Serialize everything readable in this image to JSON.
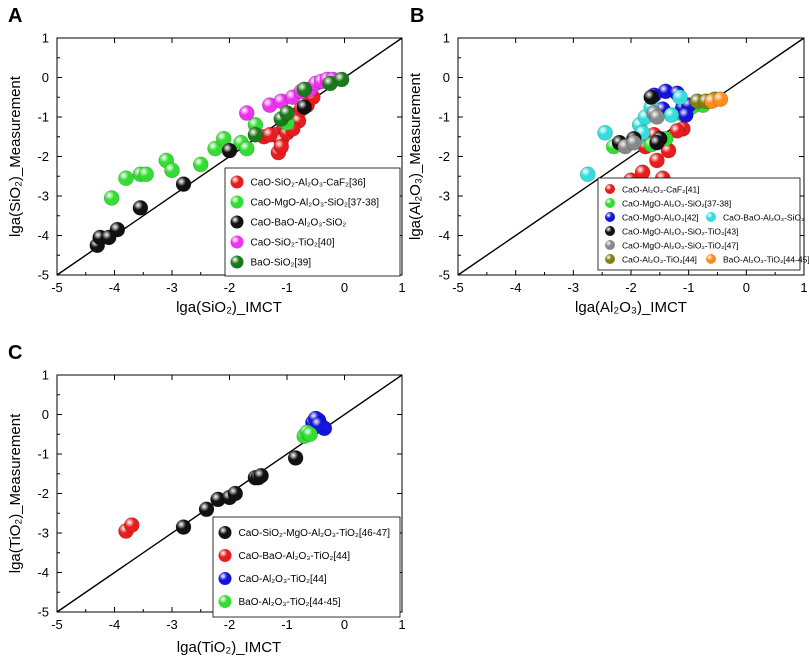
{
  "panels": [
    {
      "id": "A",
      "letter": "A",
      "chart_data": {
        "type": "scatter",
        "title": "",
        "xlabel": "lga(SiO₂)_IMCT",
        "ylabel": "lga(SiO₂)_Measurement",
        "xlim": [
          -5,
          1
        ],
        "ylim": [
          -5,
          1
        ],
        "xticks": [
          -5,
          -4,
          -3,
          -2,
          -1,
          0,
          1
        ],
        "yticks": [
          -5,
          -4,
          -3,
          -2,
          -1,
          0
        ],
        "reference_line": "y = x",
        "legend_position": "lower-right",
        "series": [
          {
            "name": "CaO-SiO₂-Al₂O₃-CaF₂[36]",
            "color": "#e81c1c",
            "points": [
              [
                -1.4,
                -1.5
              ],
              [
                -1.2,
                -1.45
              ],
              [
                -1.05,
                -1.25
              ],
              [
                -0.95,
                -1.05
              ],
              [
                -0.85,
                -0.95
              ],
              [
                -0.8,
                -1.1
              ],
              [
                -1.1,
                -1.6
              ],
              [
                -1.0,
                -1.4
              ],
              [
                -0.9,
                -1.3
              ],
              [
                -1.15,
                -1.9
              ],
              [
                -1.1,
                -1.75
              ],
              [
                -0.75,
                -0.8
              ],
              [
                -0.65,
                -0.7
              ],
              [
                -0.55,
                -0.5
              ],
              [
                -1.3,
                -1.45
              ]
            ]
          },
          {
            "name": "CaO-MgO-Al₂O₃-SiO₂[37-38]",
            "color": "#33dd33",
            "points": [
              [
                -4.05,
                -3.05
              ],
              [
                -3.8,
                -2.55
              ],
              [
                -3.55,
                -2.45
              ],
              [
                -3.45,
                -2.45
              ],
              [
                -3.1,
                -2.1
              ],
              [
                -3.0,
                -2.35
              ],
              [
                -2.5,
                -2.2
              ],
              [
                -2.25,
                -1.8
              ],
              [
                -2.1,
                -1.55
              ],
              [
                -1.8,
                -1.65
              ],
              [
                -1.7,
                -1.8
              ],
              [
                -1.55,
                -1.2
              ],
              [
                -1.0,
                -1.15
              ]
            ]
          },
          {
            "name": "CaO-BaO-Al₂O₃-SiO₂",
            "color": "#111111",
            "points": [
              [
                -4.3,
                -4.25
              ],
              [
                -4.25,
                -4.05
              ],
              [
                -4.1,
                -4.05
              ],
              [
                -3.95,
                -3.85
              ],
              [
                -3.55,
                -3.3
              ],
              [
                -2.8,
                -2.7
              ],
              [
                -2.0,
                -1.85
              ],
              [
                -0.7,
                -0.75
              ]
            ]
          },
          {
            "name": "CaO-SiO₂-TiO₂[40]",
            "color": "#ee33ee",
            "points": [
              [
                -1.7,
                -0.9
              ],
              [
                -1.3,
                -0.7
              ],
              [
                -1.1,
                -0.6
              ],
              [
                -0.9,
                -0.5
              ],
              [
                -0.75,
                -0.35
              ],
              [
                -0.6,
                -0.3
              ],
              [
                -0.5,
                -0.15
              ],
              [
                -0.4,
                -0.1
              ],
              [
                -0.3,
                -0.05
              ],
              [
                -0.2,
                -0.05
              ]
            ]
          },
          {
            "name": "BaO-SiO₂[39]",
            "color": "#1a7a1a",
            "points": [
              [
                -1.55,
                -1.45
              ],
              [
                -1.1,
                -1.05
              ],
              [
                -1.0,
                -0.9
              ],
              [
                -0.7,
                -0.3
              ],
              [
                -0.25,
                -0.15
              ],
              [
                -0.05,
                -0.05
              ]
            ]
          }
        ]
      }
    },
    {
      "id": "B",
      "letter": "B",
      "chart_data": {
        "type": "scatter",
        "title": "",
        "xlabel": "lga(Al₂O₃)_IMCT",
        "ylabel": "lga(Al₂O₃)_Measurement",
        "xlim": [
          -5,
          1
        ],
        "ylim": [
          -5,
          1
        ],
        "xticks": [
          -5,
          -4,
          -3,
          -2,
          -1,
          0,
          1
        ],
        "yticks": [
          -5,
          -4,
          -3,
          -2,
          -1,
          0
        ],
        "reference_line": "y = x",
        "legend_position": "lower-right",
        "series": [
          {
            "name": "CaO-Al₂O₃-CaF₂[41]",
            "color": "#e81c1c",
            "points": [
              [
                -2.0,
                -2.6
              ],
              [
                -1.8,
                -2.4
              ],
              [
                -1.45,
                -2.55
              ],
              [
                -1.55,
                -2.1
              ],
              [
                -1.35,
                -1.85
              ],
              [
                -1.1,
                -1.3
              ],
              [
                -1.2,
                -1.35
              ],
              [
                -1.75,
                -1.75
              ],
              [
                -1.6,
                -1.45
              ]
            ]
          },
          {
            "name": "CaO-MgO-Al₂O₃-SiO₂[37-38]",
            "color": "#33dd33",
            "points": [
              [
                -2.3,
                -1.75
              ],
              [
                -1.65,
                -1.7
              ],
              [
                -1.4,
                -1.55
              ],
              [
                -1.15,
                -0.9
              ],
              [
                -0.75,
                -0.7
              ],
              [
                -0.95,
                -0.75
              ]
            ]
          },
          {
            "name": "CaO-MgO-Al₂O₃[42]",
            "color": "#1414dd",
            "points": [
              [
                -1.4,
                -0.35
              ],
              [
                -1.2,
                -0.4
              ],
              [
                -1.1,
                -0.75
              ],
              [
                -1.0,
                -0.7
              ],
              [
                -1.05,
                -0.95
              ],
              [
                -1.45,
                -0.8
              ],
              [
                -1.6,
                -0.45
              ]
            ]
          },
          {
            "name": "CaO-BaO-Al₂O₃-SiO₂",
            "color": "#33dddd",
            "points": [
              [
                -2.75,
                -2.45
              ],
              [
                -2.45,
                -1.4
              ],
              [
                -1.9,
                -1.55
              ],
              [
                -1.85,
                -1.2
              ],
              [
                -1.75,
                -1.0
              ],
              [
                -1.65,
                -0.75
              ],
              [
                -1.3,
                -0.95
              ],
              [
                -1.15,
                -0.5
              ],
              [
                -1.8,
                -1.4
              ]
            ]
          },
          {
            "name": "CaO-MgO-Al₂O₃-SiO₂-TiO₂[43]",
            "color": "#111111",
            "points": [
              [
                -2.2,
                -1.65
              ],
              [
                -1.95,
                -1.55
              ],
              [
                -1.5,
                -1.55
              ],
              [
                -1.65,
                -0.5
              ],
              [
                -1.55,
                -1.65
              ]
            ]
          },
          {
            "name": "CaO-MgO-Al₂O₃-SiO₂-TiO₂[47]",
            "color": "#888888",
            "points": [
              [
                -2.1,
                -1.75
              ],
              [
                -1.95,
                -1.65
              ],
              [
                -1.6,
                -0.9
              ],
              [
                -1.55,
                -1.0
              ]
            ]
          },
          {
            "name": "CaO-Al₂O₃-TiO₂[44]",
            "color": "#808010",
            "points": [
              [
                -0.85,
                -0.6
              ],
              [
                -0.7,
                -0.6
              ],
              [
                -0.55,
                -0.55
              ]
            ]
          },
          {
            "name": "BaO-Al₂O₃-TiO₂[44-45]",
            "color": "#ff8c1a",
            "points": [
              [
                -0.6,
                -0.6
              ],
              [
                -0.45,
                -0.55
              ]
            ]
          }
        ]
      }
    },
    {
      "id": "C",
      "letter": "C",
      "chart_data": {
        "type": "scatter",
        "title": "",
        "xlabel": "lga(TiO₂)_IMCT",
        "ylabel": "lga(TiO₂)_Measurement",
        "xlim": [
          -5,
          1
        ],
        "ylim": [
          -5,
          1
        ],
        "xticks": [
          -5,
          -4,
          -3,
          -2,
          -1,
          0,
          1
        ],
        "yticks": [
          -5,
          -4,
          -3,
          -2,
          -1,
          0
        ],
        "reference_line": "y = x",
        "legend_position": "lower-right",
        "series": [
          {
            "name": "CaO-SiO₂-MgO-Al₂O₃-TiO₂[46-47]",
            "color": "#111111",
            "points": [
              [
                -2.8,
                -2.85
              ],
              [
                -2.4,
                -2.4
              ],
              [
                -2.2,
                -2.15
              ],
              [
                -2.0,
                -2.1
              ],
              [
                -1.9,
                -2.0
              ],
              [
                -1.55,
                -1.6
              ],
              [
                -1.5,
                -1.6
              ],
              [
                -1.45,
                -1.55
              ],
              [
                -0.85,
                -1.1
              ]
            ]
          },
          {
            "name": "CaO-BaO-Al₂O₃-TiO₂[44]",
            "color": "#e81c1c",
            "points": [
              [
                -3.8,
                -2.95
              ],
              [
                -3.7,
                -2.8
              ]
            ]
          },
          {
            "name": "CaO-Al₂O₃-TiO₂[44]",
            "color": "#1414dd",
            "points": [
              [
                -0.55,
                -0.2
              ],
              [
                -0.45,
                -0.15
              ],
              [
                -0.4,
                -0.3
              ],
              [
                -0.35,
                -0.35
              ],
              [
                -0.5,
                -0.1
              ],
              [
                -0.45,
                -0.25
              ]
            ]
          },
          {
            "name": "BaO-Al₂O₃-TiO₂[44-45]",
            "color": "#33dd33",
            "points": [
              [
                -0.7,
                -0.55
              ],
              [
                -0.65,
                -0.45
              ],
              [
                -0.6,
                -0.5
              ]
            ]
          }
        ]
      }
    }
  ]
}
